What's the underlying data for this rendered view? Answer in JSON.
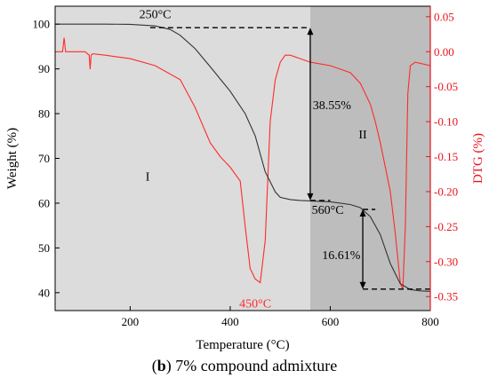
{
  "chart_data": {
    "type": "line",
    "xlabel": "Temperature (°C)",
    "ylabel": "Weight (%)",
    "y2label": "DTG (%)",
    "xlim": [
      50,
      800
    ],
    "ylim": [
      36,
      104
    ],
    "y2lim": [
      -0.37,
      0.065
    ],
    "x_ticks": [
      200,
      400,
      600,
      800
    ],
    "y_ticks": [
      40,
      50,
      60,
      70,
      80,
      90,
      100
    ],
    "y2_ticks": [
      0.05,
      0.0,
      -0.05,
      -0.1,
      -0.15,
      -0.2,
      -0.25,
      -0.3,
      -0.35
    ],
    "x_tick_labels": [
      "200",
      "400",
      "600",
      "800"
    ],
    "y_tick_labels": [
      "40",
      "50",
      "60",
      "70",
      "80",
      "90",
      "100"
    ],
    "y2_tick_labels": [
      "0.05",
      "0.00",
      "-0.05",
      "-0.10",
      "-0.15",
      "-0.20",
      "-0.25",
      "-0.30",
      "-0.35"
    ],
    "colors": {
      "weight": "#333333",
      "dtg": "#ff2a2a",
      "region_I": "#dcdcdc",
      "region_II": "#bdbdbd",
      "secondary_axis": "#e8141c"
    },
    "regions": [
      {
        "label": "I",
        "x_range": [
          50,
          560
        ]
      },
      {
        "label": "II",
        "x_range": [
          560,
          800
        ]
      }
    ],
    "series": [
      {
        "axis": "left",
        "x": [
          50,
          100,
          150,
          200,
          250,
          280,
          300,
          330,
          360,
          400,
          430,
          450,
          470,
          490,
          500,
          520,
          540,
          560,
          600,
          640,
          660,
          680,
          700,
          720,
          740,
          760,
          780,
          800
        ],
        "y": [
          100,
          100,
          100,
          99.95,
          99.6,
          98.8,
          97.5,
          94.5,
          90.5,
          85,
          80,
          75,
          67,
          62.5,
          61.3,
          60.8,
          60.6,
          60.5,
          60.3,
          59.7,
          59,
          57,
          53,
          46.5,
          42,
          40.7,
          40.4,
          40.3
        ]
      },
      {
        "axis": "right",
        "x": [
          50,
          65,
          68,
          71,
          80,
          110,
          118,
          120,
          122,
          125,
          150,
          200,
          250,
          300,
          330,
          360,
          380,
          400,
          420,
          430,
          440,
          450,
          460,
          470,
          480,
          490,
          500,
          510,
          520,
          540,
          560,
          600,
          640,
          660,
          680,
          690,
          700,
          710,
          720,
          730,
          740,
          745,
          750,
          755,
          760,
          770,
          800
        ],
        "y": [
          0.0,
          0.0,
          0.02,
          0.0,
          0.0,
          0.0,
          -0.005,
          -0.025,
          -0.005,
          -0.003,
          -0.005,
          -0.01,
          -0.02,
          -0.04,
          -0.08,
          -0.13,
          -0.15,
          -0.165,
          -0.185,
          -0.25,
          -0.31,
          -0.325,
          -0.33,
          -0.27,
          -0.1,
          -0.04,
          -0.015,
          -0.005,
          -0.005,
          -0.01,
          -0.015,
          -0.02,
          -0.03,
          -0.045,
          -0.075,
          -0.1,
          -0.13,
          -0.165,
          -0.2,
          -0.26,
          -0.33,
          -0.34,
          -0.25,
          -0.06,
          -0.02,
          -0.015,
          -0.02
        ]
      }
    ],
    "annotations": {
      "t250": "250°C",
      "t450": "450°C",
      "t560": "560°C",
      "loss1": "38.55%",
      "loss2": "16.61%",
      "region_I": "I",
      "region_II": "II"
    }
  },
  "caption": {
    "prefix": "(",
    "bold": "b",
    "suffix": ") 7% compound admixture"
  }
}
